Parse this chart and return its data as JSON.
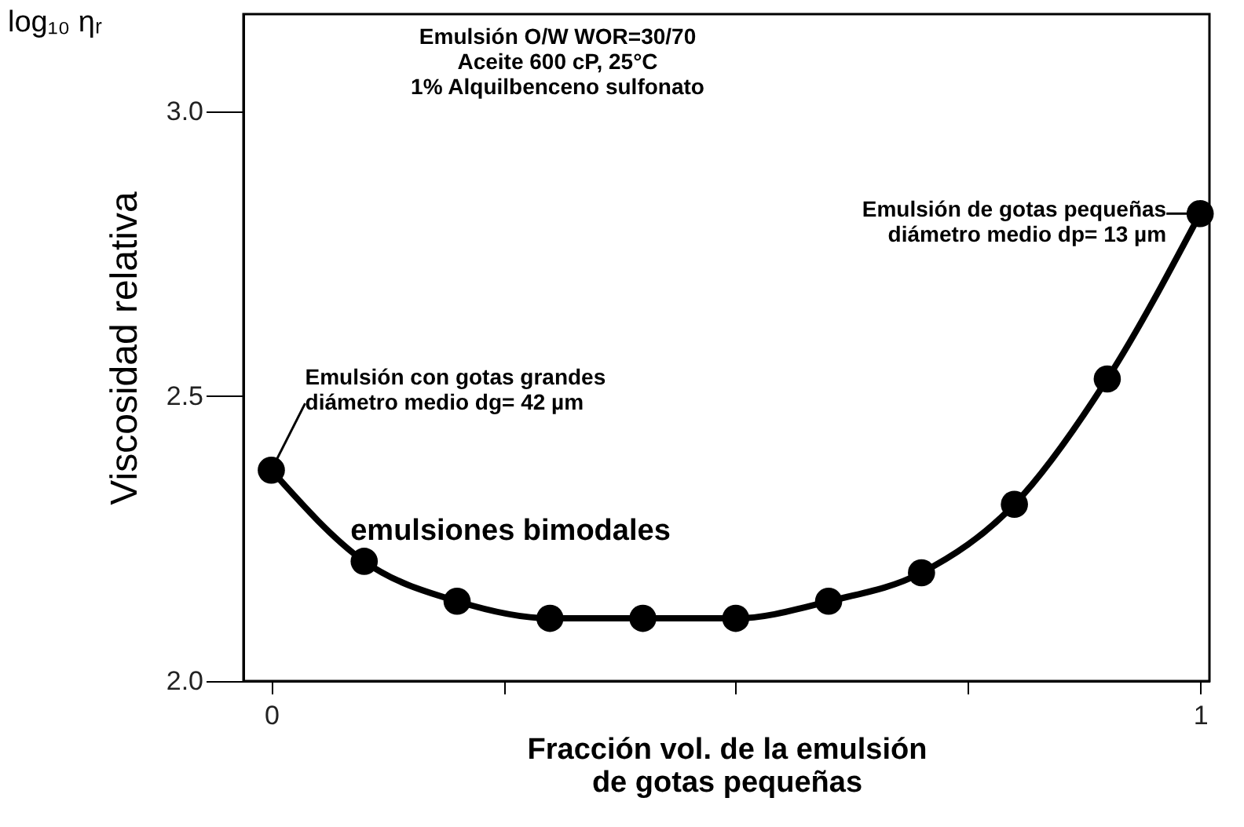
{
  "chart_data": {
    "type": "line",
    "xlabel": "Fracción vol. de la emulsión\nde gotas pequeñas",
    "ylabel": "Viscosidad relativa",
    "x": [
      0,
      0.1,
      0.2,
      0.3,
      0.4,
      0.5,
      0.6,
      0.7,
      0.8,
      0.9,
      1.0
    ],
    "series": [
      {
        "color": "#000000",
        "values": [
          2.37,
          2.21,
          2.14,
          2.11,
          2.11,
          2.11,
          2.14,
          2.19,
          2.31,
          2.53,
          2.82
        ]
      }
    ],
    "xlim": [
      -0.03,
      1.01
    ],
    "xticks": [
      0,
      {
        "value": 0.25,
        "label": null
      },
      {
        "value": 0.5,
        "label": null
      },
      {
        "value": 0.75,
        "label": null
      },
      1
    ],
    "ylim": [
      2.0,
      3.17
    ],
    "yticks": [
      {
        "value": 2.0,
        "label": "2.0"
      },
      {
        "value": 2.5,
        "label": "2.5"
      },
      {
        "value": 3.0,
        "label": "3.0"
      }
    ],
    "grid": false,
    "marker": "circle",
    "line_style": "solid",
    "annotations": [
      "Emulsión O/W WOR=30/70\nAceite 600 cP, 25°C\n1% Alquilbenceno sulfonato",
      "log₁₀ ηᵣ",
      "emulsiones bimodales",
      {
        "text": "Emulsión con gotas grandes\ndiámetro medio dg= 42 µm",
        "x": 0,
        "y": 2.37
      },
      {
        "text": "Emulsión de gotas pequeñas\ndiámetro medio dp= 13 µm",
        "x": 1.0,
        "y": 2.82
      }
    ]
  }
}
